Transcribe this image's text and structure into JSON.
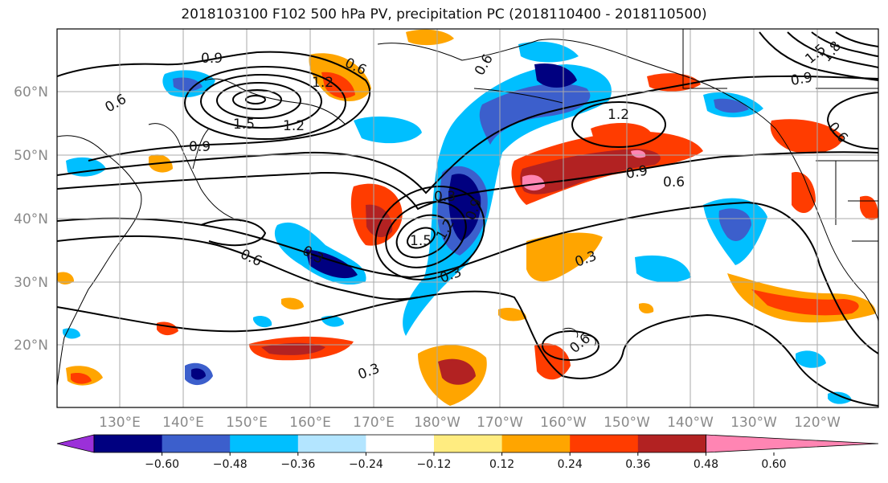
{
  "title": "2018103100 F102 500 hPa PV, precipitation PC (2018110400 - 2018110500)",
  "lat_labels": [
    "60°N",
    "50°N",
    "40°N",
    "30°N",
    "20°N"
  ],
  "lon_labels": [
    "130°E",
    "140°E",
    "150°E",
    "160°E",
    "170°E",
    "180°W",
    "170°W",
    "160°W",
    "150°W",
    "140°W",
    "130°W",
    "120°W"
  ],
  "colorbar": {
    "ticks": [
      "−0.60",
      "−0.48",
      "−0.36",
      "−0.24",
      "−0.12",
      "0.12",
      "0.24",
      "0.36",
      "0.48",
      "0.60"
    ],
    "colors": [
      "#9b30d9",
      "#000080",
      "#3c5fcc",
      "#00bfff",
      "#b3e5ff",
      "#ffffff",
      "#ffec80",
      "#ffa500",
      "#ff3c00",
      "#b22222",
      "#ff85b3"
    ]
  },
  "contour_labels": [
    "0.9",
    "0.6",
    "0.6",
    "1.2",
    "1.5",
    "0.9",
    "1.2",
    "0.6",
    "0.3",
    "1.5",
    "1.2",
    "0.9",
    "0.3",
    "0.3",
    "0.6",
    "0.3",
    "0.6",
    "0.3",
    "1.2",
    "0.9",
    "0.6",
    "1.5",
    "1.8",
    "0.9",
    "0.6"
  ]
}
